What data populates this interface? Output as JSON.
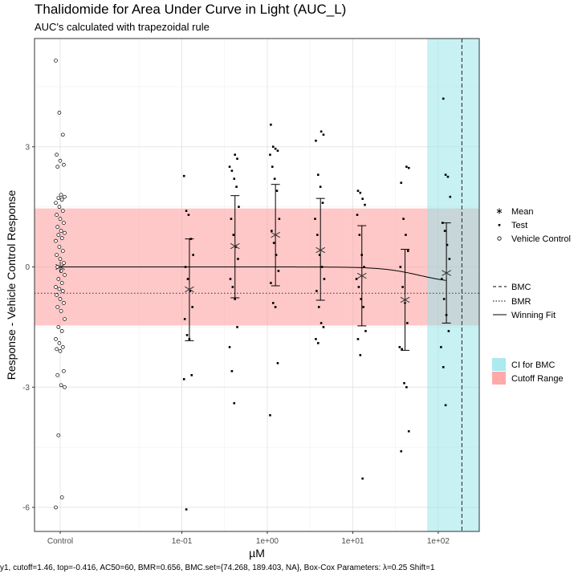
{
  "chart_data": {
    "type": "scatter",
    "title": "Thalidomide for Area Under Curve in Light (AUC_L)",
    "subtitle": "AUC's calculated with trapezoidal rule",
    "xlabel": "µM",
    "ylabel": "Response - Vehicle Control Response",
    "x_scale": "log10",
    "x_ticks": [
      "Control",
      "1e-01",
      "1e+00",
      "1e+01",
      "1e+02"
    ],
    "y_ticks": [
      "3",
      "0",
      "-3",
      "-6"
    ],
    "ylim": [
      -6.6,
      5.7
    ],
    "xlim_log10": [
      -1.85,
      2.48
    ],
    "grid": true,
    "footer": "y1, cutoff=1.46, top=-0.416, AC50=60, BMR=0.656, BMC.set={74.268, 189.403, NA}, Box-Cox Parameters: λ=0.25 Shift=1",
    "bands": {
      "cutoff_range": {
        "name": "Cutoff Range",
        "ymin": -1.46,
        "ymax": 1.46,
        "color": "#ff9a9a"
      },
      "ci_for_bmc": {
        "name": "CI for BMC",
        "xmin": 74.268,
        "xmax": 189.403,
        "color": "#8fe3e8"
      }
    },
    "bmc": {
      "name": "BMC",
      "x": 189.403
    },
    "bmr": {
      "name": "BMR",
      "y": -0.656
    },
    "winning_fit": {
      "name": "Winning Fit",
      "top": -0.416,
      "ac50": 60
    },
    "vehicle_control": {
      "name": "Vehicle Control",
      "values": [
        5.15,
        3.85,
        3.3,
        2.8,
        2.65,
        2.55,
        2.5,
        1.8,
        1.75,
        1.72,
        1.68,
        1.6,
        1.5,
        1.4,
        1.3,
        1.2,
        1.1,
        1.0,
        0.9,
        0.85,
        0.8,
        0.72,
        0.65,
        0.5,
        0.4,
        0.3,
        0.2,
        0.1,
        0.0,
        -0.1,
        -0.2,
        -0.3,
        -0.4,
        -0.5,
        -0.55,
        -0.6,
        -0.7,
        -0.8,
        -0.9,
        -1.0,
        -1.1,
        -1.3,
        -1.5,
        -1.6,
        -1.8,
        -1.9,
        -2.0,
        -2.05,
        -2.1,
        -2.6,
        -2.7,
        -2.95,
        -3.0,
        -4.2,
        -5.75,
        -6.0
      ]
    },
    "doses": [
      {
        "conc": 0.12,
        "mean": -0.56,
        "err_hi": 0.7,
        "err_lo": -1.84,
        "test": [
          2.27,
          1.4,
          1.3,
          0.7,
          0.3,
          0.0,
          -0.3,
          -0.6,
          -1.0,
          -1.3,
          -1.7,
          -1.8,
          -2.7,
          -2.8,
          -6.05
        ]
      },
      {
        "conc": 0.41,
        "mean": 0.52,
        "err_hi": 1.78,
        "err_lo": -0.77,
        "test": [
          2.8,
          2.7,
          2.5,
          2.4,
          2.2,
          2.0,
          1.5,
          1.2,
          0.8,
          0.5,
          0.2,
          -0.3,
          -0.5,
          -0.8,
          -1.5,
          -2.0,
          -2.6,
          -3.4
        ]
      },
      {
        "conc": 1.22,
        "mean": 0.8,
        "err_hi": 2.06,
        "err_lo": -0.47,
        "test": [
          3.55,
          3.0,
          2.95,
          2.9,
          2.8,
          2.5,
          2.2,
          1.9,
          1.2,
          0.9,
          0.6,
          0.3,
          -0.1,
          -0.4,
          -0.9,
          -1.0,
          -2.4,
          -3.7
        ]
      },
      {
        "conc": 4.1,
        "mean": 0.42,
        "err_hi": 1.71,
        "err_lo": -0.83,
        "test": [
          3.38,
          3.3,
          3.15,
          2.3,
          2.0,
          1.6,
          1.2,
          0.8,
          0.3,
          0.0,
          -0.3,
          -0.6,
          -1.0,
          -1.4,
          -1.5,
          -1.8,
          -1.9
        ]
      },
      {
        "conc": 12.5,
        "mean": -0.22,
        "err_hi": 1.03,
        "err_lo": -1.47,
        "test": [
          1.9,
          1.85,
          1.7,
          1.55,
          1.3,
          0.8,
          0.3,
          0.0,
          -0.3,
          -0.5,
          -0.8,
          -1.0,
          -1.6,
          -1.8,
          -2.2,
          -5.28
        ]
      },
      {
        "conc": 40.0,
        "mean": -0.82,
        "err_hi": 0.44,
        "err_lo": -2.08,
        "test": [
          2.5,
          2.47,
          2.1,
          1.2,
          0.8,
          0.4,
          0.0,
          -0.5,
          -0.9,
          -1.4,
          -2.0,
          -2.05,
          -2.9,
          -3.0,
          -4.1,
          -4.6
        ]
      },
      {
        "conc": 122.0,
        "mean": -0.15,
        "err_hi": 1.1,
        "err_lo": -1.4,
        "test": [
          4.2,
          2.3,
          2.25,
          1.75,
          1.1,
          0.9,
          0.55,
          0.2,
          -0.3,
          -0.8,
          -1.2,
          -1.6,
          -2.0,
          -2.5,
          -3.45
        ]
      }
    ],
    "legend": {
      "points": [
        "Mean",
        "Test",
        "Vehicle Control"
      ],
      "lines": [
        "BMC",
        "BMR",
        "Winning Fit"
      ],
      "fills": [
        "CI for BMC",
        "Cutoff Range"
      ],
      "placement": "right"
    }
  }
}
